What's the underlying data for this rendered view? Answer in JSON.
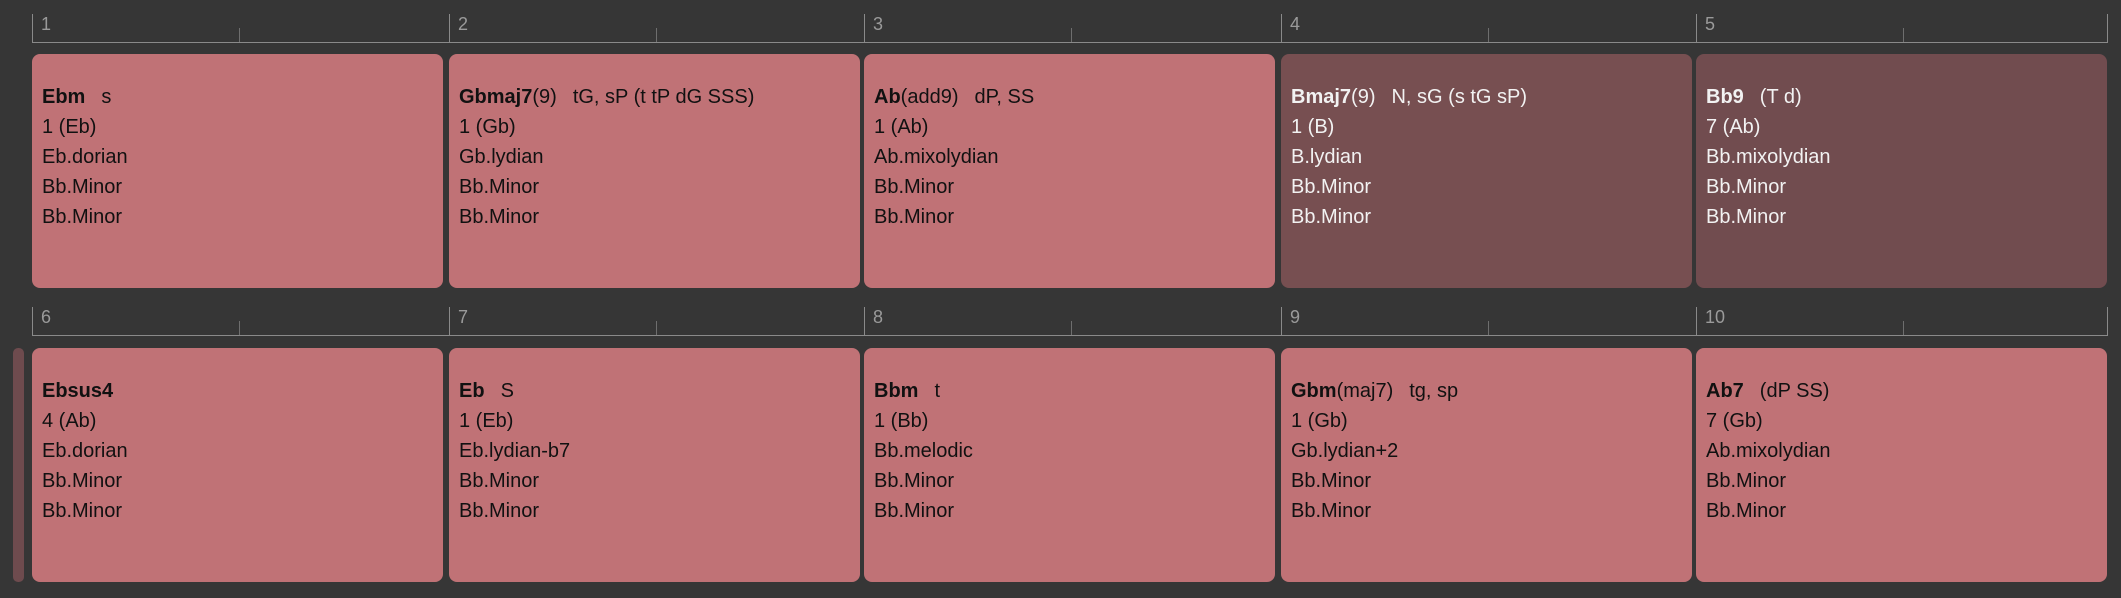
{
  "colors": {
    "background": "#363636",
    "card": "#c07276",
    "card_selected": "#774f51",
    "ruler": "#8a8a8a"
  },
  "rows": [
    {
      "bars": [
        {
          "number": "1",
          "chord": "Ebm",
          "suffix": "",
          "function": "s",
          "degree": "1 (Eb)",
          "scale": "Eb.dorian",
          "key1": "Bb.Minor",
          "key2": "Bb.Minor",
          "style": "normal"
        },
        {
          "number": "2",
          "chord": "Gbmaj7",
          "suffix": "(9)",
          "function": "tG, sP (t tP dG SSS)",
          "degree": "1 (Gb)",
          "scale": "Gb.lydian",
          "key1": "Bb.Minor",
          "key2": "Bb.Minor",
          "style": "normal"
        },
        {
          "number": "3",
          "chord": "Ab",
          "suffix": "(add9)",
          "function": "dP, SS",
          "degree": "1 (Ab)",
          "scale": "Ab.mixolydian",
          "key1": "Bb.Minor",
          "key2": "Bb.Minor",
          "style": "normal"
        },
        {
          "number": "4",
          "chord": "Bmaj7",
          "suffix": "(9)",
          "function": "N, sG (s tG sP)",
          "degree": "1 (B)",
          "scale": "B.lydian",
          "key1": "Bb.Minor",
          "key2": "Bb.Minor",
          "style": "dark"
        },
        {
          "number": "5",
          "chord": "Bb9",
          "suffix": "",
          "function": "(T d)",
          "degree": "7 (Ab)",
          "scale": "Bb.mixolydian",
          "key1": "Bb.Minor",
          "key2": "Bb.Minor",
          "style": "dark2"
        }
      ]
    },
    {
      "bars": [
        {
          "number": "6",
          "chord": "Ebsus4",
          "suffix": "",
          "function": "",
          "degree": "4 (Ab)",
          "scale": "Eb.dorian",
          "key1": "Bb.Minor",
          "key2": "Bb.Minor",
          "style": "normal"
        },
        {
          "number": "7",
          "chord": "Eb",
          "suffix": "",
          "function": "S",
          "degree": "1 (Eb)",
          "scale": "Eb.lydian-b7",
          "key1": "Bb.Minor",
          "key2": "Bb.Minor",
          "style": "normal"
        },
        {
          "number": "8",
          "chord": "Bbm",
          "suffix": "",
          "function": "t",
          "degree": "1 (Bb)",
          "scale": "Bb.melodic",
          "key1": "Bb.Minor",
          "key2": "Bb.Minor",
          "style": "normal"
        },
        {
          "number": "9",
          "chord": "Gbm",
          "suffix": "(maj7)",
          "function": "tg, sp",
          "degree": "1 (Gb)",
          "scale": "Gb.lydian+2",
          "key1": "Bb.Minor",
          "key2": "Bb.Minor",
          "style": "normal"
        },
        {
          "number": "10",
          "chord": "Ab7",
          "suffix": "",
          "function": "(dP SS)",
          "degree": "7 (Gb)",
          "scale": "Ab.mixolydian",
          "key1": "Bb.Minor",
          "key2": "Bb.Minor",
          "style": "normal"
        }
      ]
    }
  ]
}
